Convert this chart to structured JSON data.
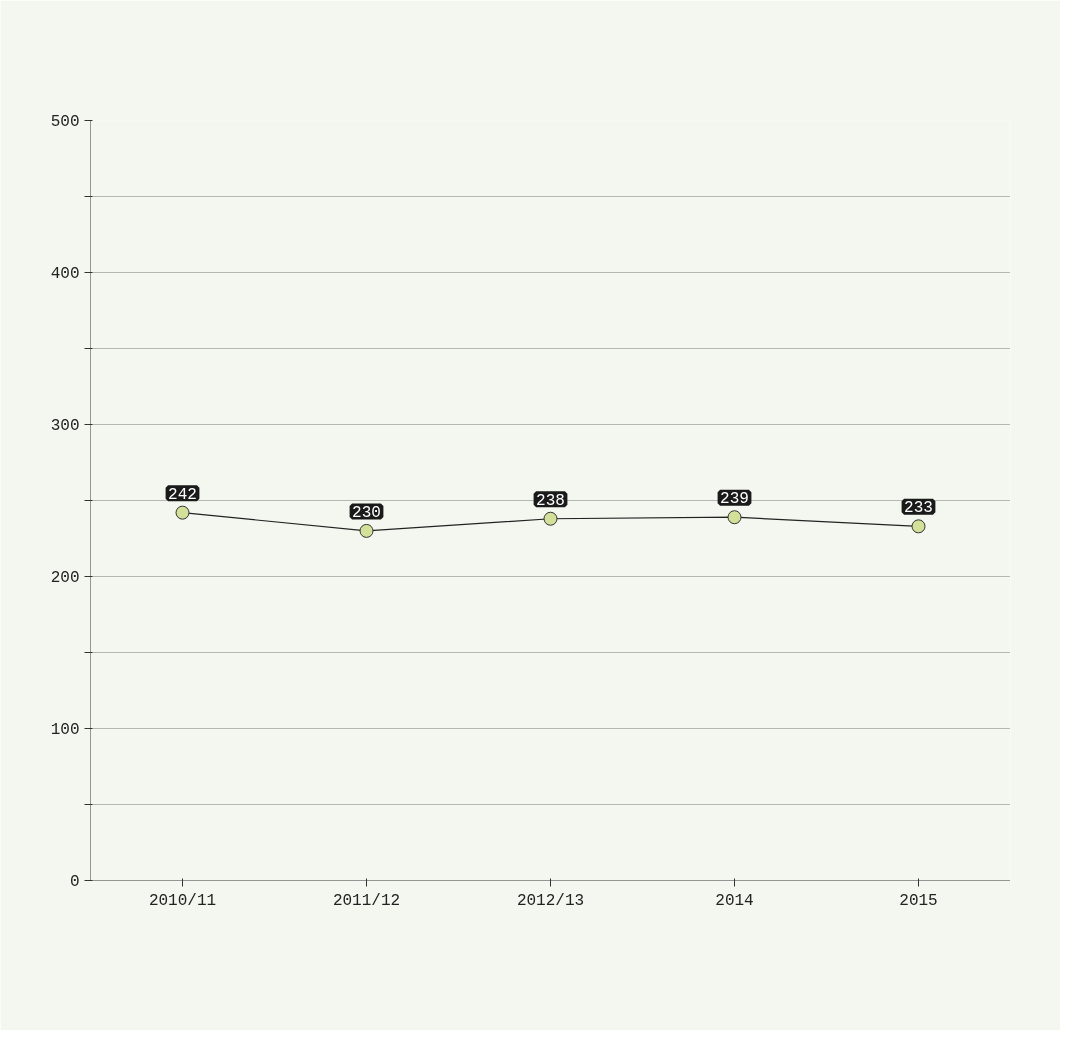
{
  "chart_data": {
    "type": "line",
    "categories": [
      "2010/11",
      "2011/12",
      "2012/13",
      "2014",
      "2015"
    ],
    "series": [
      {
        "color": "#222222",
        "values": [
          242,
          230,
          238,
          239,
          233
        ]
      }
    ],
    "marker": "circle",
    "data_labels": true,
    "grid": "y",
    "ylim": [
      0,
      500
    ],
    "yticks": [
      0,
      {
        "value": 50,
        "label": null
      },
      100,
      {
        "value": 150,
        "label": null
      },
      200,
      {
        "value": 250,
        "label": null
      },
      300,
      {
        "value": 350,
        "label": null
      },
      400,
      {
        "value": 450,
        "label": null
      },
      500
    ]
  }
}
